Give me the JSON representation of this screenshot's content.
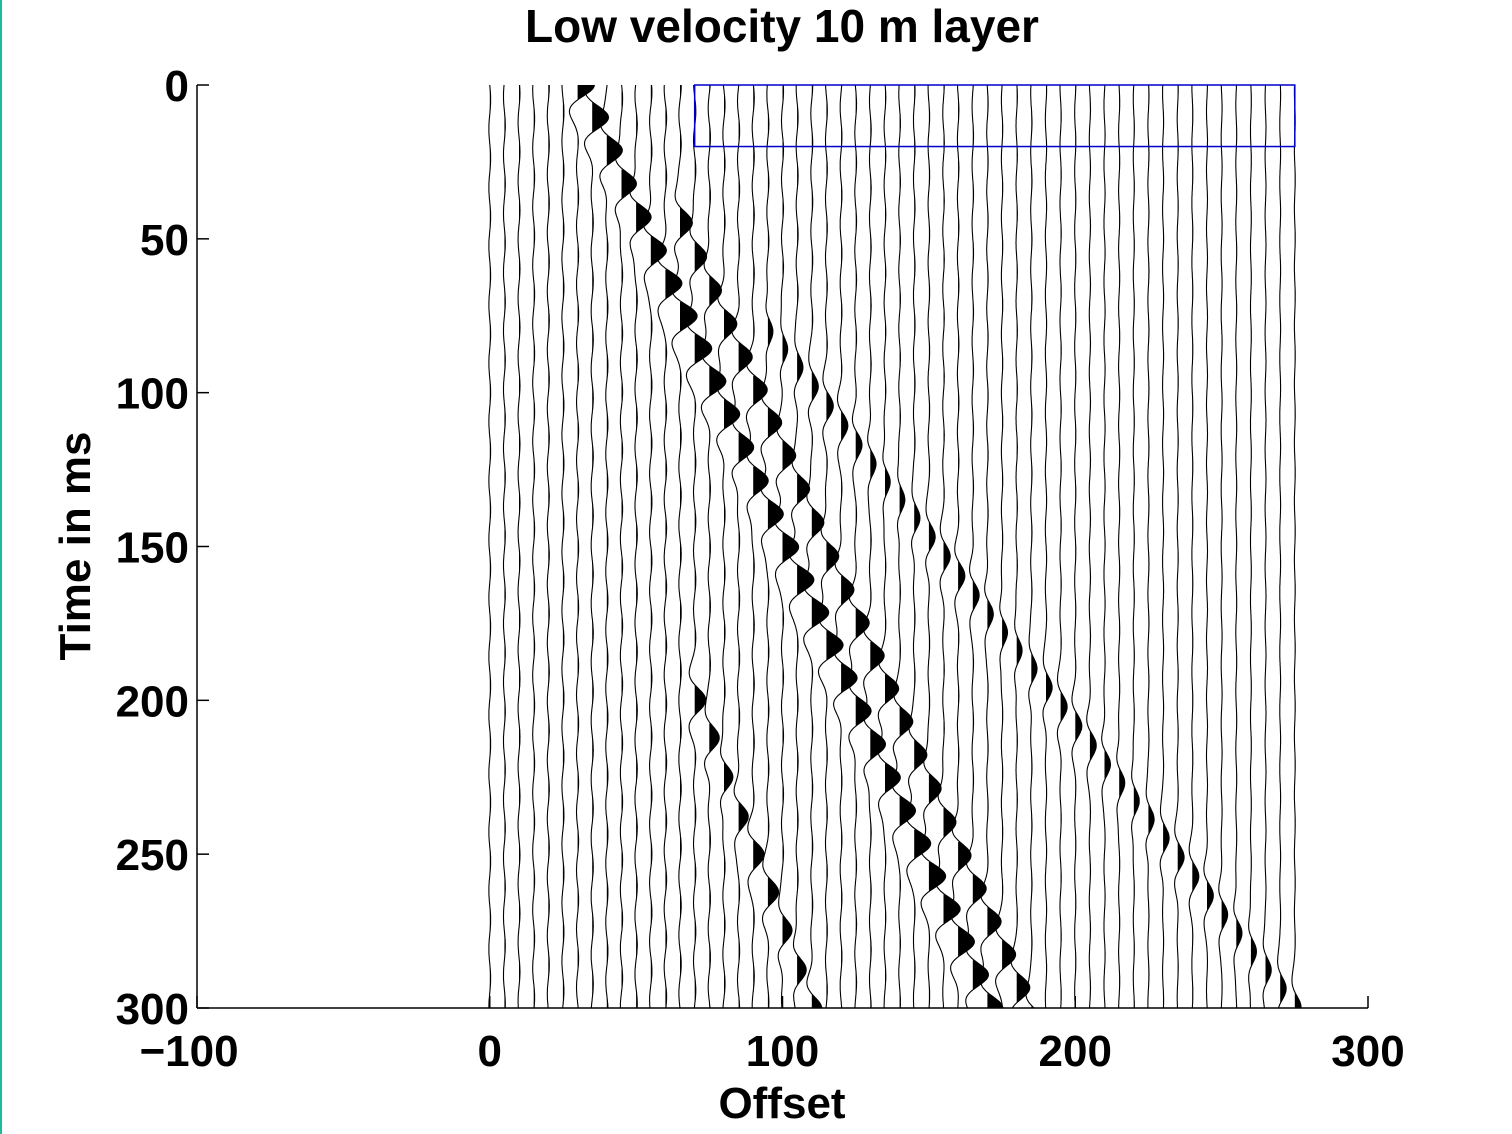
{
  "chart_data": {
    "type": "seismic-wiggle",
    "title": "Low velocity 10 m layer",
    "xlabel": "Offset",
    "ylabel": "Time in ms",
    "xlim": [
      -100,
      300
    ],
    "ylim": [
      0,
      300
    ],
    "y_reversed": true,
    "xticks": [
      "−100",
      "0",
      "100",
      "200",
      "300"
    ],
    "yticks": [
      "0",
      "50",
      "100",
      "150",
      "200",
      "250",
      "300"
    ],
    "traces": {
      "first_offset": 0,
      "last_offset": 275,
      "spacing": 5,
      "fill": "positive-black"
    },
    "events": [
      {
        "name": "direct-arrival",
        "t_start": 0,
        "offset_start": 30,
        "t_end": 300,
        "offset_end": 170
      },
      {
        "name": "head-wave",
        "t_start": 45,
        "offset_start": 65,
        "t_end": 300,
        "offset_end": 183
      },
      {
        "name": "reverberation",
        "t_start": 200,
        "offset_start": 70,
        "t_end": 300,
        "offset_end": 110
      },
      {
        "name": "late-arrival",
        "t_start": 80,
        "offset_start": 95,
        "t_end": 300,
        "offset_end": 275
      }
    ],
    "highlight_box": {
      "offset": [
        70,
        275
      ],
      "time": [
        0,
        20
      ],
      "color": "#0000cc"
    },
    "colors": {
      "trace": "#000000",
      "box": "#0000cc",
      "frame_edge": "#1abc9c"
    }
  }
}
